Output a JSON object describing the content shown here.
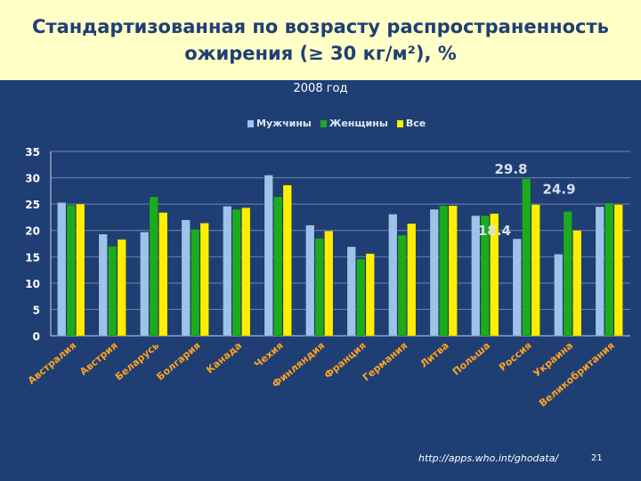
{
  "title_line1": "Стандартизованная по возрасту распространенность",
  "title_line2": "ожирения (≥ 30 кг/м²), %",
  "year_label": "2008 год",
  "source": "http://apps.who.int/ghodata/",
  "slide_number": "21",
  "chart_data": {
    "type": "bar",
    "subtitle": "2008 год",
    "categories": [
      "Австралия",
      "Австрия",
      "Беларусь",
      "Болгария",
      "Канада",
      "Чехия",
      "Финляндия",
      "Франция",
      "Германия",
      "Литва",
      "Польша",
      "Россия",
      "Украина",
      "Великобритания"
    ],
    "series": [
      {
        "name": "Мужчины",
        "color": "#9ec3ea",
        "values": [
          25.3,
          19.3,
          19.7,
          22.0,
          24.6,
          30.5,
          21.0,
          16.9,
          23.1,
          24.0,
          22.8,
          18.4,
          15.5,
          24.5
        ]
      },
      {
        "name": "Женщины",
        "color": "#1cab1c",
        "values": [
          24.8,
          17.0,
          26.4,
          20.2,
          24.0,
          26.4,
          18.5,
          14.6,
          19.1,
          24.7,
          22.8,
          29.8,
          23.6,
          25.2
        ]
      },
      {
        "name": "Все",
        "color": "#ffee00",
        "values": [
          25.0,
          18.3,
          23.4,
          21.4,
          24.3,
          28.6,
          19.9,
          15.6,
          21.3,
          24.7,
          23.2,
          24.9,
          20.0,
          24.9
        ]
      }
    ],
    "ylim": [
      0,
      35
    ],
    "yticks": [
      0,
      5,
      10,
      15,
      20,
      25,
      30,
      35
    ],
    "grid": true,
    "legend": "top-center",
    "annotations": [
      "29.8",
      "24.9",
      "18.4"
    ]
  }
}
